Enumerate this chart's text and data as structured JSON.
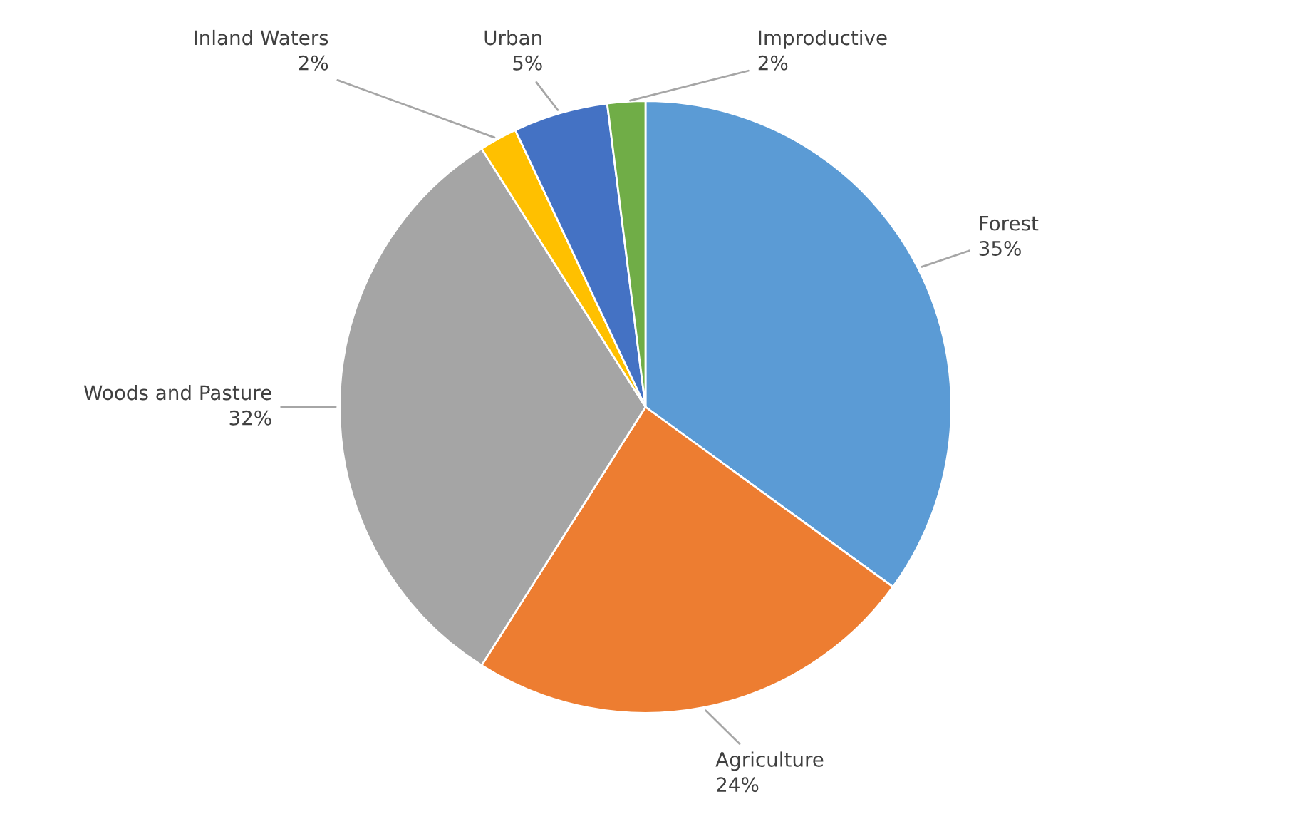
{
  "chart_data": {
    "type": "pie",
    "categories": [
      "Forest",
      "Agriculture",
      "Woods and Pasture",
      "Inland Waters",
      "Urban",
      "Improductive"
    ],
    "values": [
      35,
      24,
      32,
      2,
      5,
      2
    ],
    "value_labels": [
      "35%",
      "24%",
      "32%",
      "2%",
      "5%",
      "2%"
    ],
    "colors": [
      "#5b9bd5",
      "#ed7d31",
      "#a5a5a5",
      "#ffc000",
      "#4472c4",
      "#70ad47"
    ],
    "legend": false
  }
}
